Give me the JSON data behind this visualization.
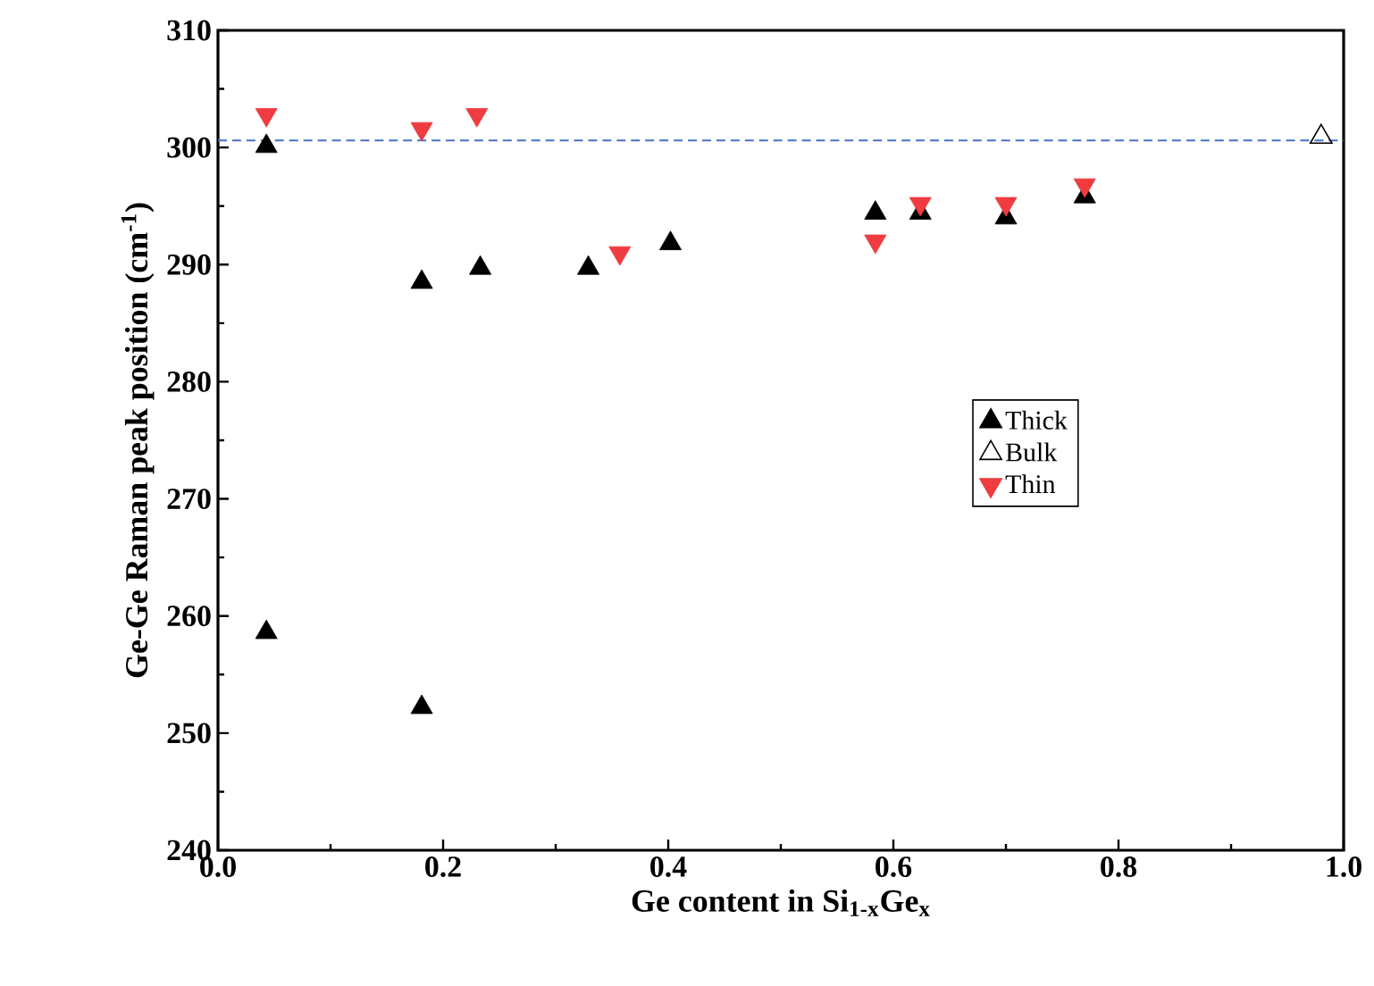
{
  "chart_data": {
    "type": "scatter",
    "xlabel": "Ge content in Si$_{1-x}$Ge$_{x}$",
    "ylabel": "Ge-Ge Raman peak position (cm$^{-1}$)",
    "xlim": [
      0.0,
      1.0
    ],
    "ylim": [
      240,
      310
    ],
    "xticks": [
      {
        "value": 0.0,
        "label": "0.0"
      },
      {
        "value": 0.2,
        "label": "0.2"
      },
      {
        "value": 0.4,
        "label": "0.4"
      },
      {
        "value": 0.6,
        "label": "0.6"
      },
      {
        "value": 0.8,
        "label": "0.8"
      },
      {
        "value": 1.0,
        "label": "1.0"
      }
    ],
    "yticks": [
      240,
      250,
      260,
      270,
      280,
      290,
      300,
      310
    ],
    "legend": "right",
    "grid": false,
    "series": [
      {
        "name": "Thick",
        "color": "#000000",
        "marker": "triangle",
        "x": [
          0.043,
          0.043,
          0.181,
          0.181,
          0.233,
          0.329,
          0.402,
          0.584,
          0.624,
          0.7,
          0.77
        ],
        "values": [
          300.1,
          258.6,
          288.5,
          252.2,
          289.7,
          289.7,
          291.8,
          294.4,
          294.4,
          294.0,
          295.8
        ]
      },
      {
        "name": "Bulk",
        "color": "#000000",
        "marker": "triangle-open",
        "x": [
          0.98
        ],
        "values": [
          300.9
        ]
      },
      {
        "name": "Thin",
        "color": "#ee3c40",
        "marker": "triangle-down",
        "x": [
          0.043,
          0.181,
          0.23,
          0.357,
          0.584,
          0.624,
          0.7,
          0.77
        ],
        "values": [
          302.8,
          301.6,
          302.8,
          291.0,
          292.0,
          295.2,
          295.2,
          296.8
        ]
      }
    ],
    "ref_lines": [
      {
        "axis": "y",
        "value": 300.6,
        "color": "#4472c4",
        "line_style": "dashed"
      }
    ]
  }
}
